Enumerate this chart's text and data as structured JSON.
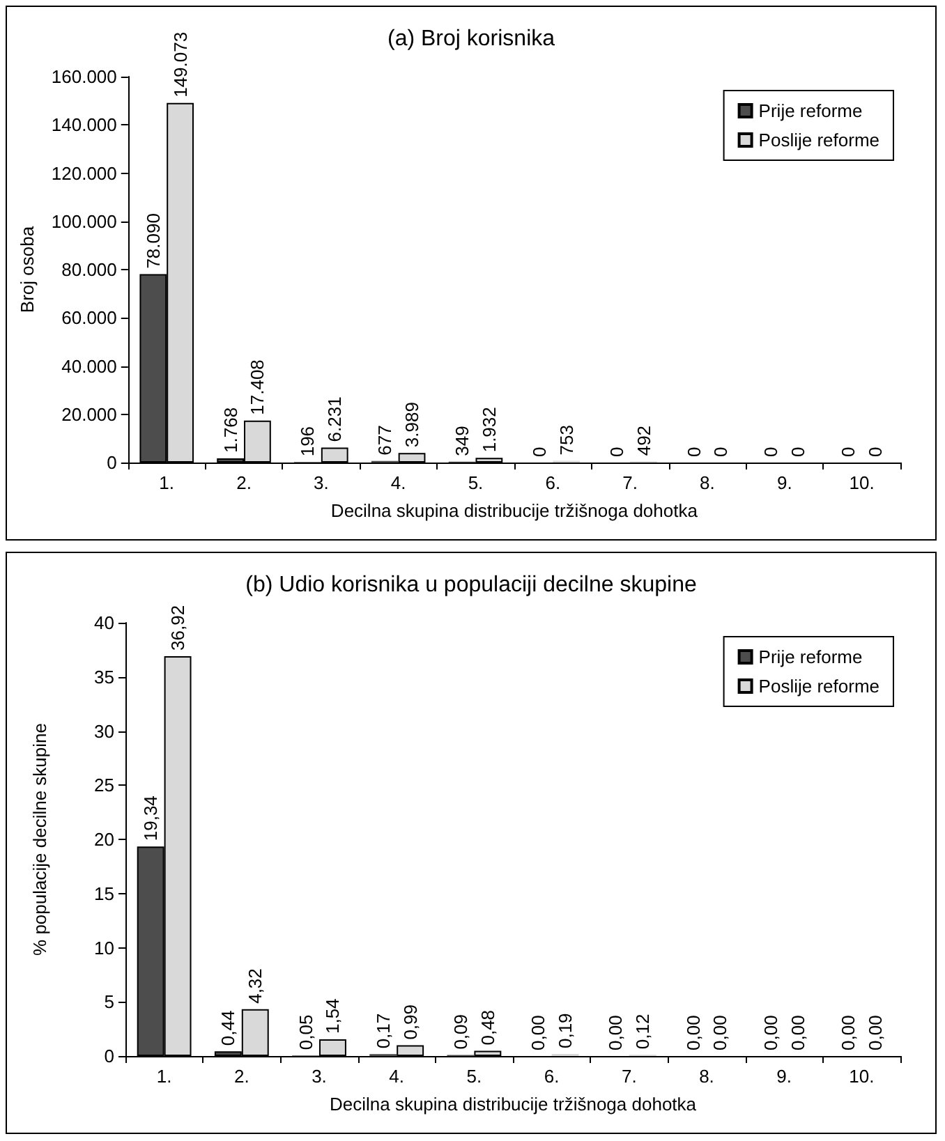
{
  "chart_data": [
    {
      "type": "bar",
      "title": "(a) Broj korisnika",
      "xlabel": "Decilna skupina distribucije tržišnoga dohotka",
      "ylabel": "Broj osoba",
      "categories": [
        "1.",
        "2.",
        "3.",
        "4.",
        "5.",
        "6.",
        "7.",
        "8.",
        "9.",
        "10."
      ],
      "series": [
        {
          "name": "Prije reforme",
          "color": "#4d4d4d",
          "values": [
            78090,
            1768,
            196,
            677,
            349,
            0,
            0,
            0,
            0,
            0
          ],
          "value_labels": [
            "78.090",
            "1.768",
            "196",
            "677",
            "349",
            "0",
            "0",
            "0",
            "0",
            "0"
          ]
        },
        {
          "name": "Poslije reforme",
          "color": "#d9d9d9",
          "values": [
            149073,
            17408,
            6231,
            3989,
            1932,
            753,
            492,
            0,
            0,
            0
          ],
          "value_labels": [
            "149.073",
            "17.408",
            "6.231",
            "3.989",
            "1.932",
            "753",
            "492",
            "0",
            "0",
            "0"
          ]
        }
      ],
      "ylim": [
        0,
        160000
      ],
      "yticks": [
        {
          "value": 0,
          "label": "0"
        },
        {
          "value": 20000,
          "label": "20.000"
        },
        {
          "value": 40000,
          "label": "40.000"
        },
        {
          "value": 60000,
          "label": "60.000"
        },
        {
          "value": 80000,
          "label": "80.000"
        },
        {
          "value": 100000,
          "label": "100.000"
        },
        {
          "value": 120000,
          "label": "120.000"
        },
        {
          "value": 140000,
          "label": "140.000"
        },
        {
          "value": 160000,
          "label": "160.000"
        }
      ],
      "grid": false,
      "legend": "top right"
    },
    {
      "type": "bar",
      "title": "(b) Udio korisnika u populaciji decilne skupine",
      "xlabel": "Decilna skupina distribucije tržišnoga dohotka",
      "ylabel": "% populacije decilne skupine",
      "categories": [
        "1.",
        "2.",
        "3.",
        "4.",
        "5.",
        "6.",
        "7.",
        "8.",
        "9.",
        "10."
      ],
      "series": [
        {
          "name": "Prije reforme",
          "color": "#4d4d4d",
          "values": [
            19.34,
            0.44,
            0.05,
            0.17,
            0.09,
            0,
            0,
            0,
            0,
            0
          ],
          "value_labels": [
            "19,34",
            "0,44",
            "0,05",
            "0,17",
            "0,09",
            "0,00",
            "0,00",
            "0,00",
            "0,00",
            "0,00"
          ]
        },
        {
          "name": "Poslije reforme",
          "color": "#d9d9d9",
          "values": [
            36.92,
            4.32,
            1.54,
            0.99,
            0.48,
            0.19,
            0.12,
            0,
            0,
            0
          ],
          "value_labels": [
            "36,92",
            "4,32",
            "1,54",
            "0,99",
            "0,48",
            "0,19",
            "0,12",
            "0,00",
            "0,00",
            "0,00"
          ]
        }
      ],
      "ylim": [
        0,
        40
      ],
      "yticks": [
        0,
        5,
        10,
        15,
        20,
        25,
        30,
        35,
        40
      ],
      "grid": false,
      "legend": "top right"
    }
  ]
}
